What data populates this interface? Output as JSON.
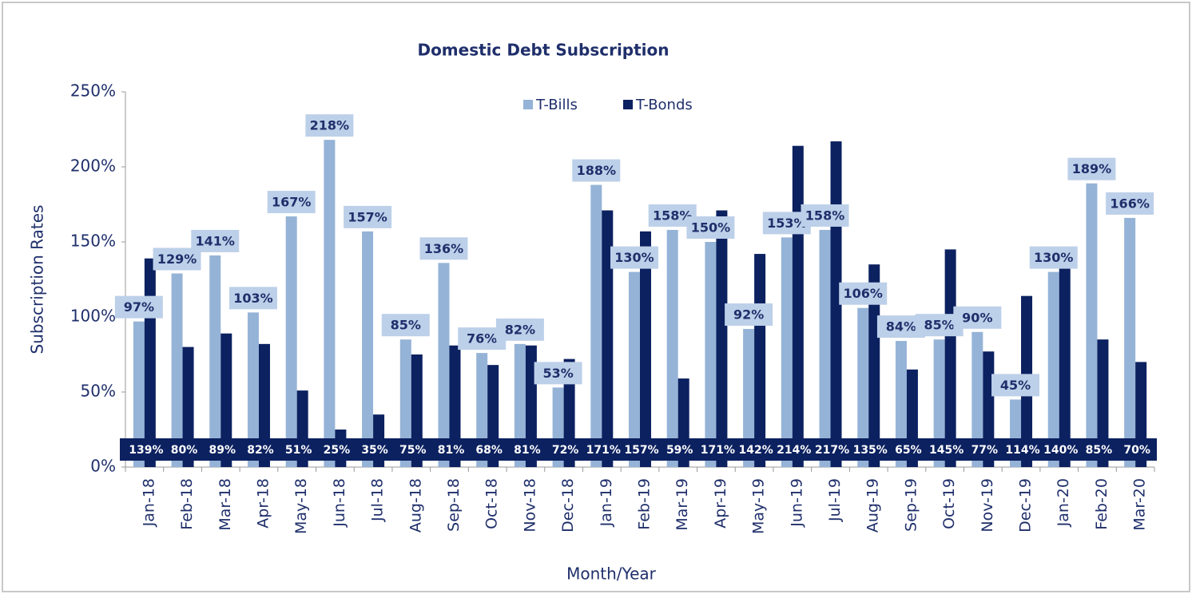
{
  "chart_data": {
    "type": "bar",
    "title": "Domestic Debt Subscription",
    "x_label": "Month/Year",
    "y_label": "Subscription Rates",
    "categories": [
      "Jan-18",
      "Feb-18",
      "Mar-18",
      "Apr-18",
      "May-18",
      "Jun-18",
      "Jul-18",
      "Aug-18",
      "Sep-18",
      "Oct-18",
      "Nov-18",
      "Dec-18",
      "Jan-19",
      "Feb-19",
      "Mar-19",
      "Apr-19",
      "May-19",
      "Jun-19",
      "Jul-19",
      "Aug-19",
      "Sep-19",
      "Oct-19",
      "Nov-19",
      "Dec-19",
      "Jan-20",
      "Feb-20",
      "Mar-20"
    ],
    "series": [
      {
        "name": "T-Bills",
        "color": "#95b3d7",
        "values": [
          97,
          129,
          141,
          103,
          167,
          218,
          157,
          85,
          136,
          76,
          82,
          53,
          188,
          130,
          158,
          150,
          92,
          153,
          158,
          106,
          84,
          85,
          90,
          45,
          130,
          189,
          166
        ],
        "value_labels": [
          "97%",
          "129%",
          "141%",
          "103%",
          "167%",
          "218%",
          "157%",
          "85%",
          "136%",
          "76%",
          "82%",
          "53%",
          "188%",
          "130%",
          "158%",
          "150%",
          "92%",
          "153%",
          "158%",
          "106%",
          "84%",
          "85%",
          "90%",
          "45%",
          "130%",
          "189%",
          "166%"
        ]
      },
      {
        "name": "T-Bonds",
        "color": "#0c2160",
        "values": [
          139,
          80,
          89,
          82,
          51,
          25,
          35,
          75,
          81,
          68,
          81,
          72,
          171,
          157,
          59,
          171,
          142,
          214,
          217,
          135,
          65,
          145,
          77,
          114,
          140,
          85,
          70
        ],
        "value_labels": [
          "139%",
          "80%",
          "89%",
          "82%",
          "51%",
          "25%",
          "35%",
          "75%",
          "81%",
          "68%",
          "81%",
          "72%",
          "171%",
          "157%",
          "59%",
          "171%",
          "142%",
          "214%",
          "217%",
          "135%",
          "65%",
          "145%",
          "77%",
          "114%",
          "140%",
          "85%",
          "70%"
        ]
      }
    ],
    "ylim": [
      0,
      250
    ],
    "yticks": [
      {
        "value": 0,
        "label": "0%"
      },
      {
        "value": 50,
        "label": "50%"
      },
      {
        "value": 100,
        "label": "100%"
      },
      {
        "value": 150,
        "label": "150%"
      },
      {
        "value": 200,
        "label": "200%"
      },
      {
        "value": 250,
        "label": "250%"
      }
    ],
    "legend": "top"
  }
}
